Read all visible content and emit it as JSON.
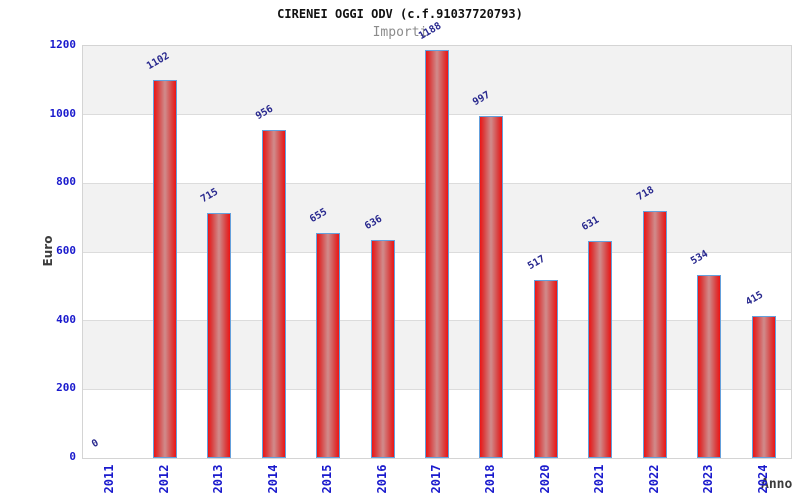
{
  "chart_data": {
    "type": "bar",
    "title": "CIRENEI OGGI ODV (c.f.91037720793)",
    "subtitle": "Importi",
    "xlabel": "Anno",
    "ylabel": "Euro",
    "categories": [
      "2011",
      "2012",
      "2013",
      "2014",
      "2015",
      "2016",
      "2017",
      "2018",
      "2020",
      "2021",
      "2022",
      "2023",
      "2024"
    ],
    "values": [
      0,
      1102,
      715,
      956,
      655,
      636,
      1188,
      997,
      517,
      631,
      718,
      534,
      415
    ],
    "ylim": [
      0,
      1200
    ],
    "yticks": [
      0,
      200,
      400,
      600,
      800,
      1000,
      1200
    ],
    "grid": "horizontal-bands",
    "legend": "none"
  },
  "colors": {
    "bar_edge_red": "#ee1414",
    "bar_center": "#d08c8c",
    "bar_border_blue": "#64a0dc",
    "axis_tick_blue": "#1a1acd",
    "value_label_blue": "#28288e",
    "band_gray": "#f2f2f2",
    "gridline_gray": "#dcdcdc",
    "axis_title_dark": "#3c3c3c",
    "subtitle_gray": "#8c8c8c",
    "title_black": "#111111"
  }
}
